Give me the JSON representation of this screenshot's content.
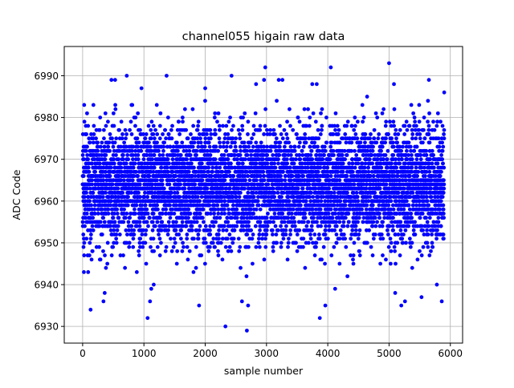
{
  "chart_data": {
    "type": "scatter",
    "title": "channel055 higain raw data",
    "xlabel": "sample number",
    "ylabel": "ADC Code",
    "xlim": [
      -300,
      6200
    ],
    "ylim": [
      6926,
      6997
    ],
    "xticks": [
      0,
      1000,
      2000,
      3000,
      4000,
      5000,
      6000
    ],
    "yticks": [
      6930,
      6940,
      6950,
      6960,
      6970,
      6980,
      6990
    ],
    "xtick_labels": [
      "0",
      "1000",
      "2000",
      "3000",
      "4000",
      "5000",
      "6000"
    ],
    "ytick_labels": [
      "6930",
      "6940",
      "6950",
      "6960",
      "6970",
      "6980",
      "6990"
    ],
    "grid": true,
    "legend": "none",
    "marker_color": "#0000ff",
    "series": [
      {
        "n_samples": 5900,
        "center": 6964,
        "spread": 7,
        "min": 6929,
        "max": 6993,
        "outliers": [
          [
            130,
            6934
          ],
          [
            360,
            6938
          ],
          [
            340,
            6936
          ],
          [
            380,
            6944
          ],
          [
            470,
            6989
          ],
          [
            530,
            6989
          ],
          [
            720,
            6990
          ],
          [
            960,
            6987
          ],
          [
            1060,
            6932
          ],
          [
            1100,
            6936
          ],
          [
            1120,
            6939
          ],
          [
            1160,
            6940
          ],
          [
            1370,
            6990
          ],
          [
            1900,
            6935
          ],
          [
            1850,
            6944
          ],
          [
            2000,
            6987
          ],
          [
            2330,
            6930
          ],
          [
            2430,
            6990
          ],
          [
            2600,
            6936
          ],
          [
            2680,
            6929
          ],
          [
            2700,
            6935
          ],
          [
            2830,
            6988
          ],
          [
            2960,
            6989
          ],
          [
            2980,
            6992
          ],
          [
            3200,
            6989
          ],
          [
            3260,
            6989
          ],
          [
            3820,
            6988
          ],
          [
            3870,
            6932
          ],
          [
            3960,
            6935
          ],
          [
            4050,
            6992
          ],
          [
            4120,
            6939
          ],
          [
            5000,
            6993
          ],
          [
            5080,
            6988
          ],
          [
            5200,
            6935
          ],
          [
            5260,
            6936
          ],
          [
            5530,
            6937
          ],
          [
            5650,
            6989
          ],
          [
            5780,
            6940
          ],
          [
            5860,
            6936
          ],
          [
            5900,
            6986
          ],
          [
            90,
            6943
          ],
          [
            20,
            6943
          ],
          [
            25,
            6983
          ],
          [
            5100,
            6938
          ]
        ]
      }
    ]
  }
}
